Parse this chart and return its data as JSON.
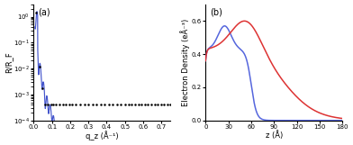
{
  "panel_a": {
    "label": "(a)",
    "xlabel": "q_z (Å⁻¹)",
    "ylabel": "R/R_F",
    "xlim": [
      0.0,
      0.75
    ],
    "ylim": [
      0.0001,
      3.0
    ],
    "xticks": [
      0.0,
      0.1,
      0.2,
      0.3,
      0.4,
      0.5,
      0.6,
      0.7
    ],
    "fit_color": "#4455cc",
    "dot_color": "#111111"
  },
  "panel_b": {
    "label": "(b)",
    "xlabel": "z (Å)",
    "ylabel": "Electron Density (eÅ⁻³)",
    "xlim": [
      0,
      180
    ],
    "ylim": [
      0,
      0.7
    ],
    "xticks": [
      0,
      30,
      60,
      90,
      120,
      150,
      180
    ],
    "yticks": [
      0.0,
      0.2,
      0.4,
      0.6
    ],
    "blue_color": "#5566dd",
    "red_color": "#dd3333"
  }
}
